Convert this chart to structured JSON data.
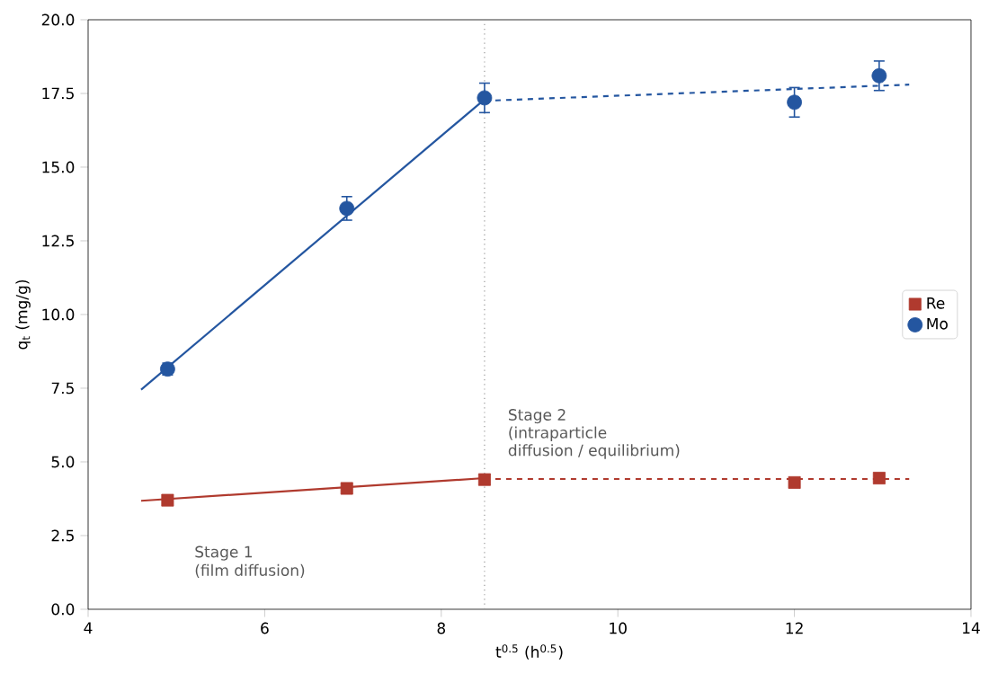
{
  "chart_data": {
    "type": "scatter",
    "xlabel": "t$^{0.5}$ (h$^{0.5}$)",
    "ylabel": "q$_{t}$ (mg/g)",
    "xlim": [
      4,
      14
    ],
    "xticks": [
      4,
      6,
      8,
      10,
      12,
      14
    ],
    "ylim": [
      0,
      20
    ],
    "yticks": [
      {
        "value": 0,
        "label": "0.0"
      },
      {
        "value": 2.5,
        "label": "2.5"
      },
      {
        "value": 5,
        "label": "5.0"
      },
      {
        "value": 7.5,
        "label": "7.5"
      },
      {
        "value": 10,
        "label": "10.0"
      },
      {
        "value": 12.5,
        "label": "12.5"
      },
      {
        "value": 15,
        "label": "15.0"
      },
      {
        "value": 17.5,
        "label": "17.5"
      },
      {
        "value": 20,
        "label": "20.0"
      }
    ],
    "legend": "right",
    "grid": false,
    "series": [
      {
        "type": "line",
        "color": "#b03a2e",
        "line_style": "solid",
        "marker": "none",
        "x": [
          4.6,
          8.49
        ],
        "values": [
          3.68,
          4.45
        ]
      },
      {
        "type": "line",
        "color": "#b03a2e",
        "line_style": "dashed",
        "marker": "none",
        "x": [
          8.49,
          13.3
        ],
        "values": [
          4.42,
          4.42
        ]
      },
      {
        "type": "line",
        "color": "#2456a0",
        "line_style": "solid",
        "marker": "none",
        "x": [
          4.6,
          8.49
        ],
        "values": [
          7.45,
          17.3
        ]
      },
      {
        "type": "line",
        "color": "#2456a0",
        "line_style": "dashed",
        "marker": "none",
        "x": [
          8.49,
          13.3
        ],
        "values": [
          17.25,
          17.8
        ]
      },
      {
        "name": "Re",
        "type": "scatter",
        "color": "#b03a2e",
        "marker": "square",
        "x": [
          4.9,
          6.93,
          8.49,
          12.0,
          12.96
        ],
        "values": [
          3.7,
          4.1,
          4.4,
          4.3,
          4.45
        ]
      },
      {
        "name": "Mo",
        "type": "scatter",
        "color": "#2456a0",
        "marker": "circle",
        "x": [
          4.9,
          6.93,
          8.49,
          12.0,
          12.96
        ],
        "values": [
          8.15,
          13.6,
          17.35,
          17.2,
          18.1
        ],
        "errors": [
          0.2,
          0.4,
          0.5,
          0.5,
          0.5
        ]
      }
    ],
    "ref_lines": [
      {
        "axis": "x",
        "value": 8.49,
        "color": "#999999",
        "line_style": "dotted"
      }
    ],
    "annotations": [
      "Stage 1",
      "(film diffusion)",
      "Stage 2",
      "(intraparticle",
      "diffusion / equilibrium)"
    ]
  }
}
